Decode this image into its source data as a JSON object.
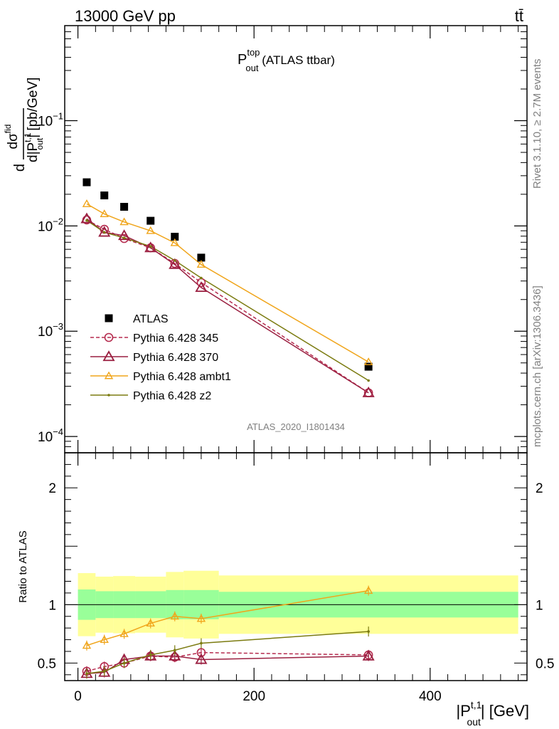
{
  "header": {
    "left": "13000 GeV pp",
    "right": "tt̄"
  },
  "side": {
    "rivet": "Rivet 3.1.10, ≥ 2.7M events",
    "mcplots": "mcplots.cern.ch [arXiv:1306.3436]"
  },
  "analysis_tag": "ATLAS_2020_I1801434",
  "chart_data": [
    {
      "type": "scatter",
      "title": {
        "main": "P",
        "sup": "top",
        "sub": "out",
        "suffix": " (ATLAS ttbar)"
      },
      "ylabel": {
        "num": "dσ",
        "num_sup": "fid",
        "den": "d|P",
        "den_sup": "t,1",
        "den_sub": "out",
        "unit": "| [pb/GeV]"
      },
      "yscale": "log",
      "ylim": [
        7e-05,
        0.8
      ],
      "xlim": [
        -15,
        510
      ],
      "yticks": [
        {
          "value": 0.1,
          "base": "10",
          "exp": "−1"
        },
        {
          "value": 0.01,
          "base": "10",
          "exp": "−2"
        },
        {
          "value": 0.001,
          "base": "10",
          "exp": "−3"
        },
        {
          "value": 0.0001,
          "base": "10",
          "exp": "−4"
        }
      ],
      "legend_position": "lower-left",
      "x": [
        10,
        30,
        52.5,
        82.5,
        110,
        140,
        330
      ],
      "series": [
        {
          "name": "ATLAS",
          "style": "data",
          "color": "#000000",
          "values": [
            0.026,
            0.0195,
            0.0152,
            0.0112,
            0.0079,
            0.005,
            0.00046
          ]
        },
        {
          "name": "Pythia 6.428 345",
          "style": "circle-dashed",
          "color": "#b52b4e",
          "values": [
            0.0114,
            0.0093,
            0.0076,
            0.0062,
            0.0044,
            0.0029,
            0.00026
          ]
        },
        {
          "name": "Pythia 6.428 370",
          "style": "triangle-solid",
          "color": "#9a1f40",
          "values": [
            0.0117,
            0.0087,
            0.0081,
            0.0062,
            0.0043,
            0.0026,
            0.00026
          ]
        },
        {
          "name": "Pythia 6.428 ambt1",
          "style": "triangle-small",
          "color": "#f0a51b",
          "values": [
            0.0162,
            0.013,
            0.0109,
            0.009,
            0.0069,
            0.0043,
            0.00051
          ]
        },
        {
          "name": "Pythia 6.428 z2",
          "style": "point",
          "color": "#7b7b10",
          "values": [
            0.0113,
            0.0087,
            0.0077,
            0.0064,
            0.0047,
            0.0032,
            0.00034
          ]
        }
      ]
    },
    {
      "type": "line",
      "ylabel": "Ratio to ATLAS",
      "xlabel": {
        "main": "|P",
        "sup": "t,1",
        "sub": "out",
        "suffix": "| [GeV]"
      },
      "ylim": [
        0.35,
        2.3
      ],
      "yticks": [
        0.5,
        1,
        2
      ],
      "xticks": [
        0,
        200,
        400
      ],
      "bins": [
        {
          "lo": 0,
          "hi": 20,
          "stat": 0.13,
          "total": 0.27
        },
        {
          "lo": 20,
          "hi": 40,
          "stat": 0.115,
          "total": 0.24
        },
        {
          "lo": 40,
          "hi": 65,
          "stat": 0.115,
          "total": 0.245
        },
        {
          "lo": 65,
          "hi": 100,
          "stat": 0.115,
          "total": 0.24
        },
        {
          "lo": 100,
          "hi": 120,
          "stat": 0.125,
          "total": 0.28
        },
        {
          "lo": 120,
          "hi": 160,
          "stat": 0.125,
          "total": 0.29
        },
        {
          "lo": 160,
          "hi": 500,
          "stat": 0.11,
          "total": 0.25
        }
      ],
      "x": [
        10,
        30,
        52.5,
        82.5,
        110,
        140,
        330
      ],
      "series": [
        {
          "name": "Pythia 6.428 345",
          "style": "circle-dashed",
          "color": "#b52b4e",
          "values": [
            0.43,
            0.47,
            0.5,
            0.56,
            0.55,
            0.59,
            0.57
          ]
        },
        {
          "name": "Pythia 6.428 370",
          "style": "triangle-solid",
          "color": "#9a1f40",
          "values": [
            0.41,
            0.42,
            0.53,
            0.56,
            0.56,
            0.53,
            0.56
          ]
        },
        {
          "name": "Pythia 6.428 ambt1",
          "style": "triangle-small",
          "color": "#f0a51b",
          "values": [
            0.65,
            0.7,
            0.75,
            0.84,
            0.9,
            0.88,
            1.12
          ]
        },
        {
          "name": "Pythia 6.428 z2",
          "style": "point",
          "color": "#7b7b10",
          "values": [
            0.41,
            0.43,
            0.5,
            0.57,
            0.61,
            0.67,
            0.77
          ]
        }
      ]
    }
  ],
  "colors": {
    "stat_band": "#99ff99",
    "total_band": "#ffff99"
  }
}
